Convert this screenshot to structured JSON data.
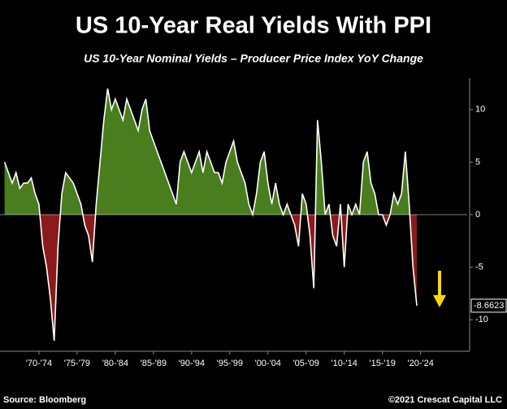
{
  "chart_data": {
    "type": "area",
    "title": "US 10-Year Real Yields With PPI",
    "subtitle": "US 10-Year Nominal Yields – Producer Price Index YoY Change",
    "source": "Source: Bloomberg",
    "credit": "©2021 Crescat Capital LLC",
    "x": [
      1968,
      1968.5,
      1969,
      1969.5,
      1970,
      1970.5,
      1971,
      1971.5,
      1972,
      1972.5,
      1973,
      1973.5,
      1974,
      1974.5,
      1975,
      1975.5,
      1976,
      1976.5,
      1977,
      1977.5,
      1978,
      1978.5,
      1979,
      1979.5,
      1980,
      1980.5,
      1981,
      1981.5,
      1982,
      1982.5,
      1983,
      1983.5,
      1984,
      1984.5,
      1985,
      1985.5,
      1986,
      1986.5,
      1987,
      1987.5,
      1988,
      1988.5,
      1989,
      1989.5,
      1990,
      1990.5,
      1991,
      1991.5,
      1992,
      1992.5,
      1993,
      1993.5,
      1994,
      1994.5,
      1995,
      1995.5,
      1996,
      1996.5,
      1997,
      1997.5,
      1998,
      1998.5,
      1999,
      1999.5,
      2000,
      2000.5,
      2001,
      2001.5,
      2002,
      2002.5,
      2003,
      2003.5,
      2004,
      2004.5,
      2005,
      2005.5,
      2006,
      2006.5,
      2007,
      2007.5,
      2008,
      2008.5,
      2009,
      2009.5,
      2010,
      2010.5,
      2011,
      2011.5,
      2012,
      2012.5,
      2013,
      2013.5,
      2014,
      2014.5,
      2015,
      2015.5,
      2016,
      2016.5,
      2017,
      2017.5,
      2018,
      2018.5,
      2019,
      2019.5,
      2020,
      2020.5,
      2021,
      2021.5,
      2022
    ],
    "values": [
      5,
      4,
      3,
      4,
      2.5,
      3,
      3,
      3.5,
      2,
      1,
      -3,
      -5,
      -8,
      -12,
      -3,
      2,
      4,
      3.5,
      3,
      2,
      1,
      -1,
      -2,
      -4.5,
      1,
      5,
      9,
      12,
      10,
      11,
      10,
      9,
      11,
      10,
      9,
      8,
      10,
      11,
      8,
      7,
      6,
      5,
      4,
      3,
      2,
      1,
      5,
      6,
      5,
      4,
      5,
      6,
      4,
      6,
      5,
      4,
      4,
      3,
      5,
      6,
      7,
      5,
      4,
      3,
      1,
      0,
      2,
      5,
      6,
      3,
      1,
      3,
      1,
      0,
      1,
      0,
      -1,
      -3,
      2,
      1,
      -2,
      -7,
      9,
      5,
      0,
      1,
      -2,
      -3,
      1,
      -5,
      1,
      0,
      1,
      0,
      5,
      6,
      3,
      2,
      0,
      0,
      -1,
      0,
      2,
      1,
      2,
      6,
      1,
      -5,
      -8.6623
    ],
    "positive_color": "#4a7d1e",
    "negative_color": "#8b1a1a",
    "line_color": "#ffffff",
    "xlim": [
      1967.4,
      2028.6
    ],
    "xticks": [
      {
        "value": 1972.5,
        "label": "'70-'74"
      },
      {
        "value": 1977.5,
        "label": "'75-'79"
      },
      {
        "value": 1982.5,
        "label": "'80-'84"
      },
      {
        "value": 1987.5,
        "label": "'85-'89"
      },
      {
        "value": 1992.5,
        "label": "'90-'94"
      },
      {
        "value": 1997.5,
        "label": "'95-'99"
      },
      {
        "value": 2002.5,
        "label": "'00-'04"
      },
      {
        "value": 2007.5,
        "label": "'05-'09"
      },
      {
        "value": 2012.5,
        "label": "'10-'14"
      },
      {
        "value": 2017.5,
        "label": "'15-'19"
      },
      {
        "value": 2022.5,
        "label": "'20-'24"
      }
    ],
    "ylim": [
      -13,
      13
    ],
    "yticks": [
      10,
      5,
      0,
      -5,
      -10
    ]
  }
}
